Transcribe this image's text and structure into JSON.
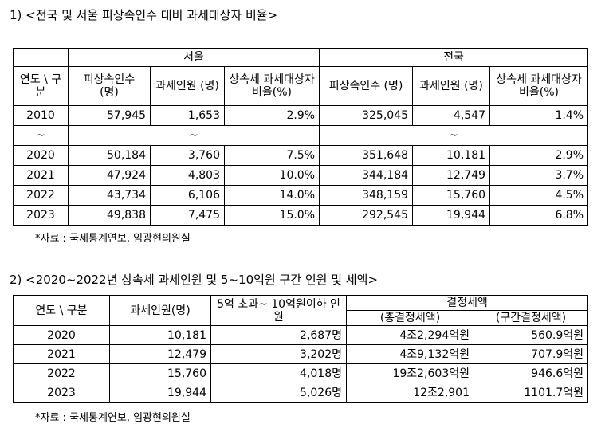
{
  "section1": {
    "heading": "1) <전국 및 서울 피상속인수 대비 과세대상자 비율>",
    "group_headers": [
      "서울",
      "전국"
    ],
    "row_header": "연도 \\ 구분",
    "col_headers": [
      "피상속인수 (명)",
      "과세인원 (명)",
      "상속세 과세대상자 비율(%)",
      "피상속인수 (명)",
      "과세인원 (명)",
      "상속세 과세대상자 비율(%)"
    ],
    "rows": [
      [
        "2010",
        "57,945",
        "1,653",
        "2.9%",
        "325,045",
        "4,547",
        "1.4%"
      ],
      [
        "~",
        "~",
        "",
        "",
        "~",
        "",
        ""
      ],
      [
        "2020",
        "50,184",
        "3,760",
        "7.5%",
        "351,648",
        "10,181",
        "2.9%"
      ],
      [
        "2021",
        "47,924",
        "4,803",
        "10.0%",
        "344,184",
        "12,749",
        "3.7%"
      ],
      [
        "2022",
        "43,734",
        "6,106",
        "14.0%",
        "348,159",
        "15,760",
        "4.5%"
      ],
      [
        "2023",
        "49,838",
        "7,475",
        "15.0%",
        "292,545",
        "19,944",
        "6.8%"
      ]
    ],
    "source": "*자료 : 국세통계연보, 임광현의원실"
  },
  "section2": {
    "heading": "2) <2020~2022년 상속세 과세인원 및 5~10억원 구간 인원 및 세액>",
    "col_headers": [
      "연도 \\ 구분",
      "과세인원(명)",
      "5억 초과~ 10억원이하 인원",
      "결정세액"
    ],
    "sub_headers": [
      "(총결정세액)",
      "(구간결정세액)"
    ],
    "rows": [
      [
        "2020",
        "10,181",
        "2,687명",
        "4조2,294억원",
        "560.9억원"
      ],
      [
        "2021",
        "12,479",
        "3,202명",
        "4조9,132억원",
        "707.9억원"
      ],
      [
        "2022",
        "15,760",
        "4,018명",
        "19조2,603억원",
        "946.6억원"
      ],
      [
        "2023",
        "19,944",
        "5,026명",
        "12조2,901",
        "1101.7억원"
      ]
    ],
    "source": "*자료 : 국세통계연보, 임광현의원실"
  }
}
